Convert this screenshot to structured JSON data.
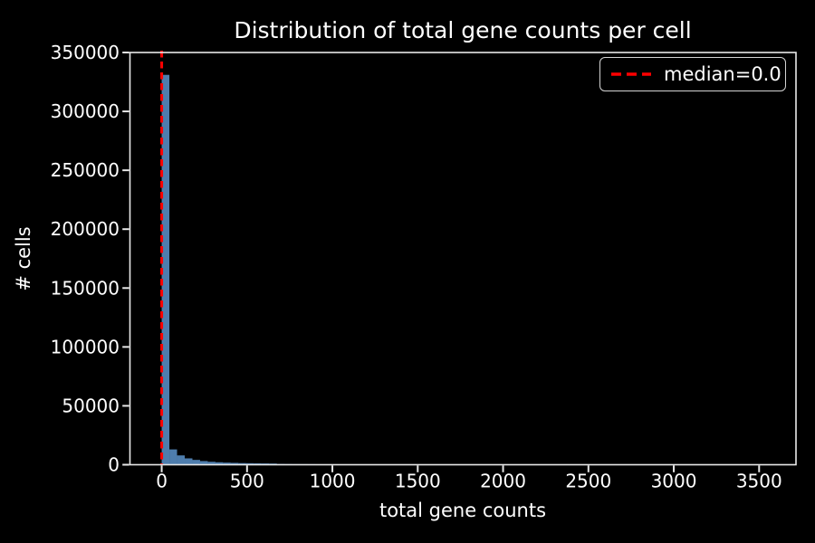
{
  "figure": {
    "background_color": "#000000",
    "text_color": "#ffffff"
  },
  "chart_data": {
    "type": "bar",
    "subtype": "histogram",
    "title": "Distribution of total gene counts per cell",
    "xlabel": "total gene counts",
    "ylabel": "# cells",
    "xlim": [
      -186,
      3716
    ],
    "ylim": [
      0,
      350000
    ],
    "xticks": [
      0,
      500,
      1000,
      1500,
      2000,
      2500,
      3000,
      3500
    ],
    "yticks": [
      0,
      50000,
      100000,
      150000,
      200000,
      250000,
      300000,
      350000
    ],
    "grid": false,
    "bar_color": "#4e7dad",
    "spine_color": "#e8e8e8",
    "tick_color": "#e8e8e8",
    "bins": {
      "start": 0,
      "width": 45
    },
    "counts": [
      331000,
      13000,
      7900,
      5400,
      4100,
      3100,
      2500,
      2100,
      1800,
      1600,
      1400,
      1300,
      1200,
      1100,
      1000,
      650,
      560,
      500,
      460,
      430,
      400,
      380,
      360,
      340,
      320,
      300,
      280,
      260
    ],
    "median_line": {
      "x": 0,
      "color": "#ff0000",
      "style": "dashed",
      "label": "median=0.0"
    },
    "legend_position": "upper right"
  }
}
